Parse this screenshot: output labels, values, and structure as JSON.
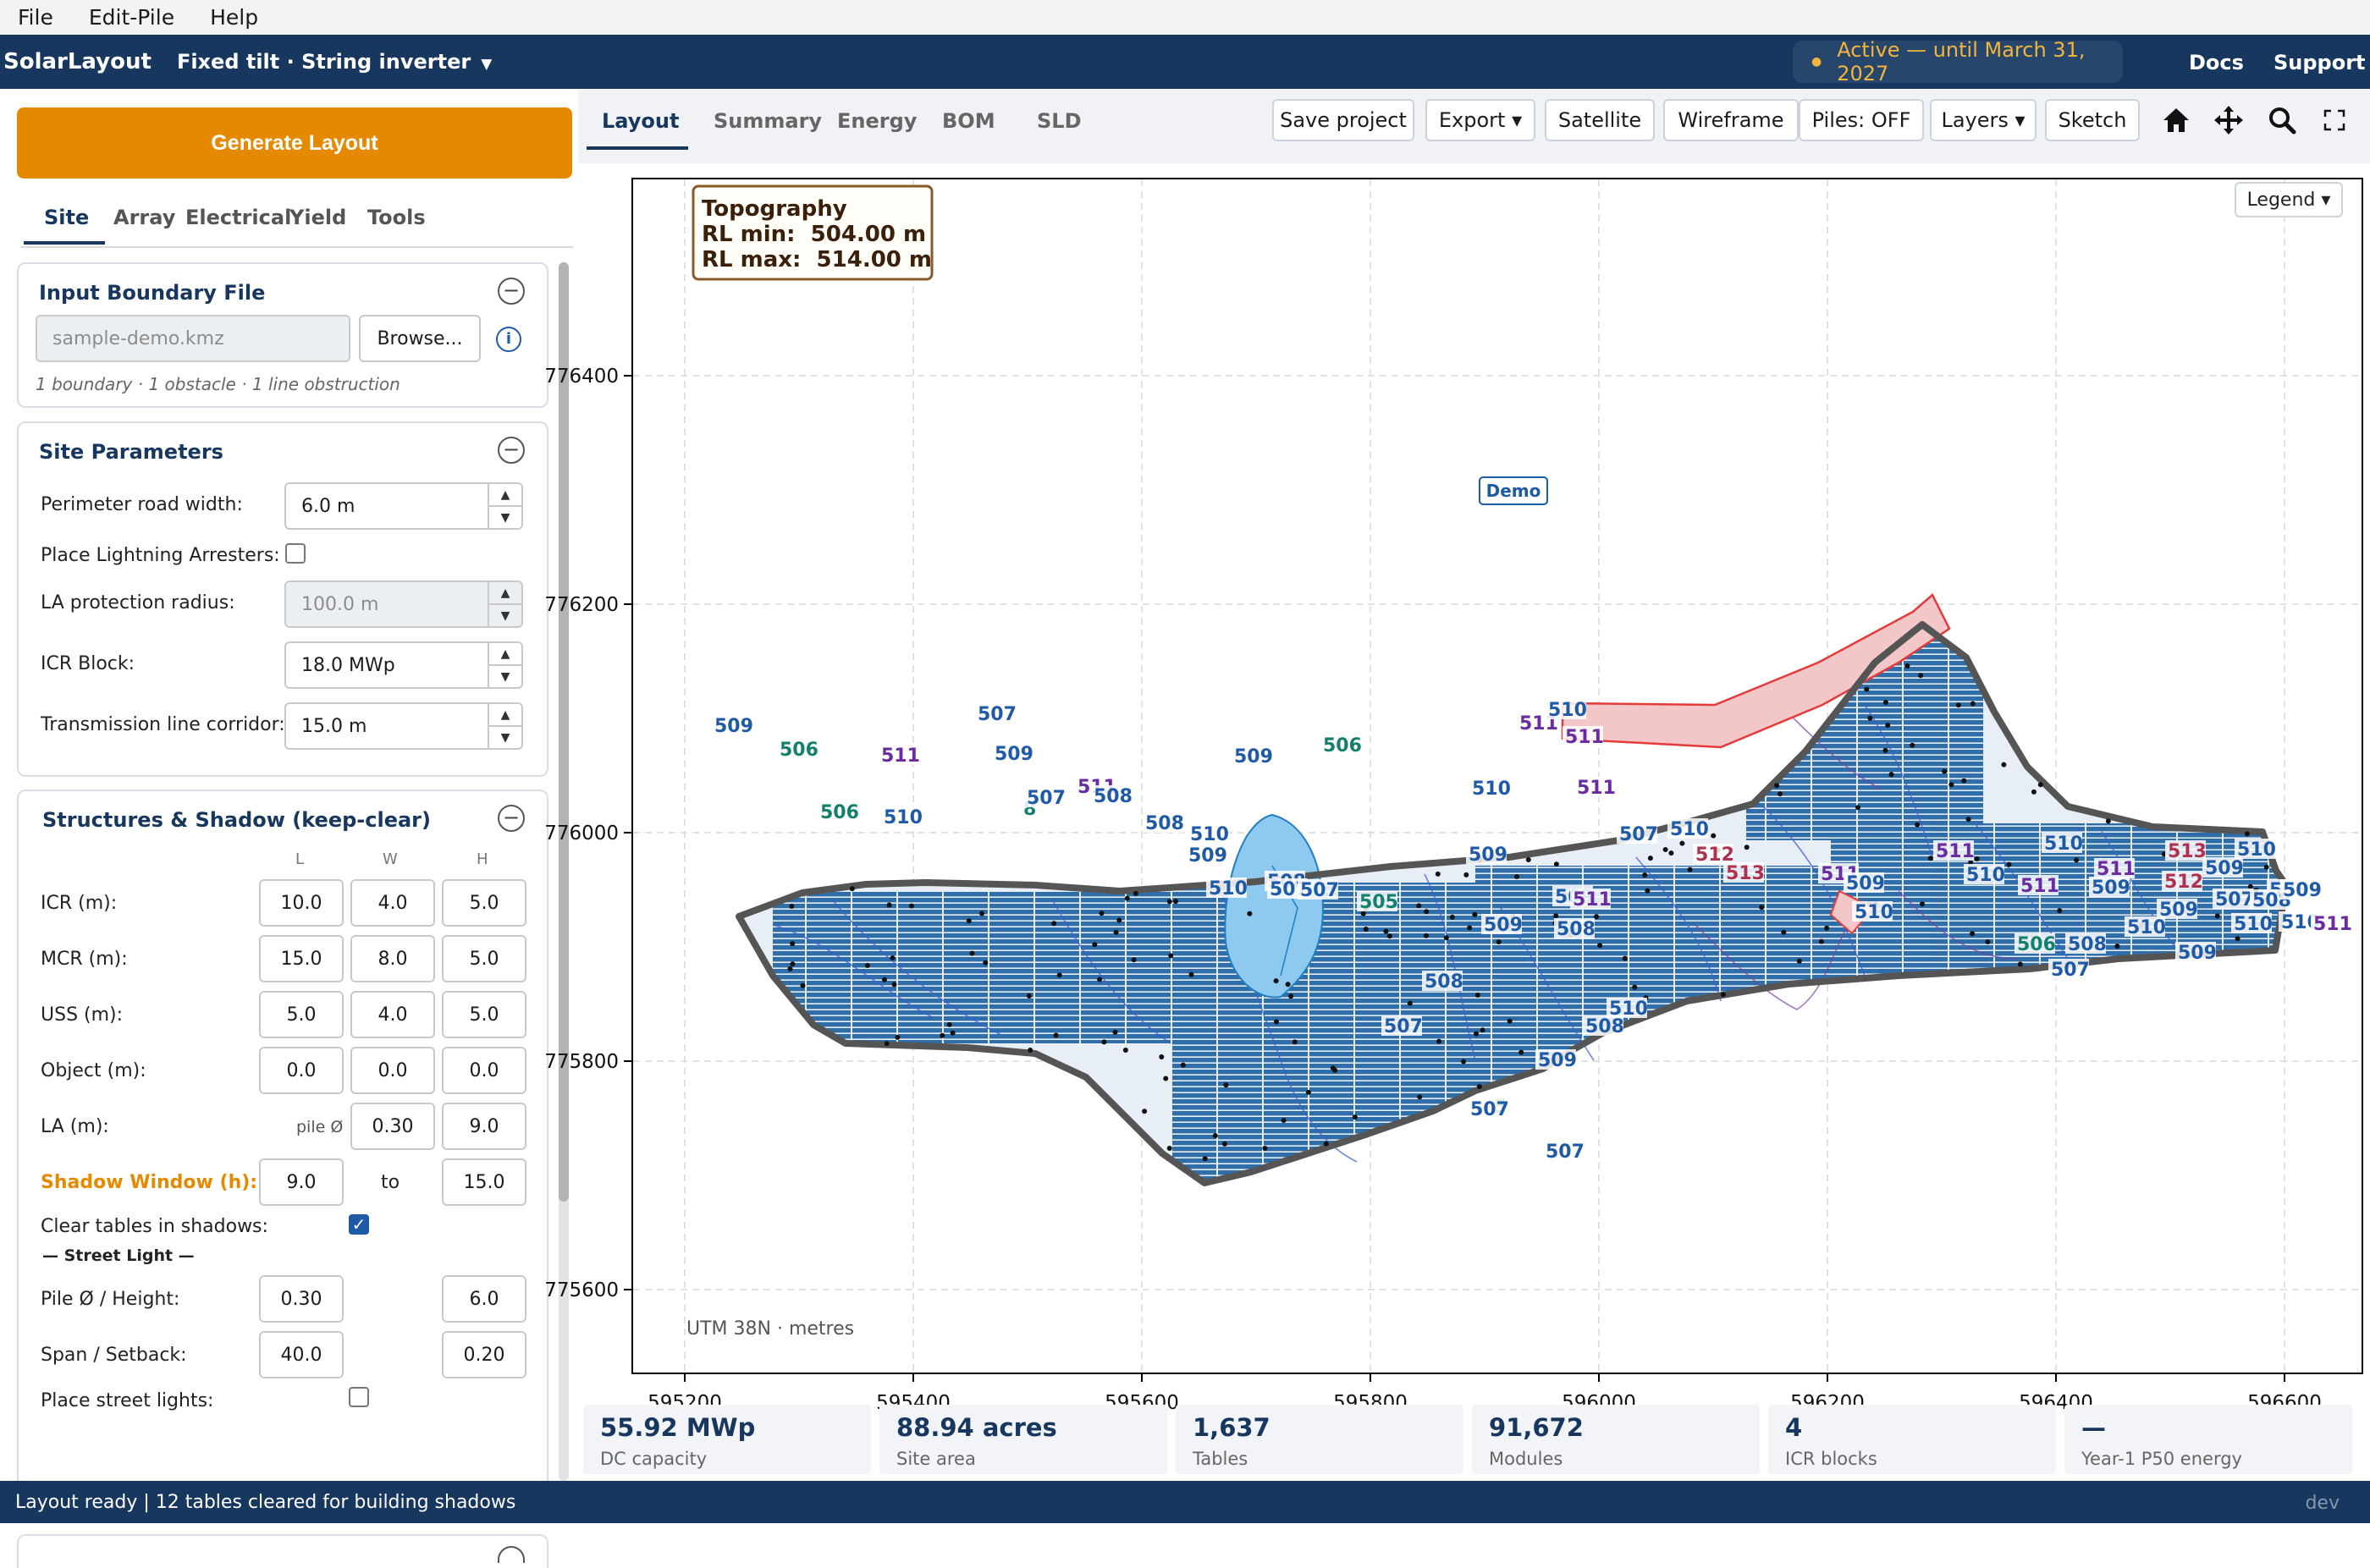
{
  "menu": [
    "File",
    "Edit-Pile",
    "Help"
  ],
  "header": {
    "brand": "SolarLayout",
    "mode": "Fixed tilt · String inverter",
    "license": "Active — until March 31, 2027",
    "links": [
      "Docs",
      "Support"
    ]
  },
  "sidebar": {
    "generate": "Generate Layout",
    "tabs": [
      "Site",
      "Array",
      "Electrical",
      "Yield",
      "Tools"
    ],
    "boundary": {
      "title": "Input Boundary File",
      "file": "sample-demo.kmz",
      "browse": "Browse...",
      "summary": "1 boundary · 1 obstacle · 1 line obstruction"
    },
    "site": {
      "title": "Site Parameters",
      "road_label": "Perimeter road width:",
      "road_value": "6.0  m",
      "la_label": "Place Lightning Arresters:",
      "la_radius_label": "LA protection radius:",
      "la_radius_value": "100.0  m",
      "icr_label": "ICR Block:",
      "icr_value": "18.0  MWp",
      "tl_label": "Transmission line corridor:",
      "tl_value": "15.0  m"
    },
    "structures": {
      "title": "Structures & Shadow (keep-clear)",
      "cols": [
        "L",
        "W",
        "H"
      ],
      "rows": [
        {
          "label": "ICR (m):",
          "v": [
            "10.0",
            "4.0",
            "5.0"
          ]
        },
        {
          "label": "MCR (m):",
          "v": [
            "15.0",
            "8.0",
            "5.0"
          ]
        },
        {
          "label": "USS (m):",
          "v": [
            "5.0",
            "4.0",
            "5.0"
          ]
        },
        {
          "label": "Object (m):",
          "v": [
            "0.0",
            "0.0",
            "0.0"
          ]
        },
        {
          "label": "LA (m):",
          "pre": "pile Ø",
          "v": [
            "0.30",
            "9.0"
          ]
        }
      ],
      "shadow_label": "Shadow Window (h):",
      "shadow_from": "9.0",
      "shadow_to_label": "to",
      "shadow_to": "15.0",
      "clear_label": "Clear tables in shadows:",
      "street_heading": "— Street Light —",
      "pile_label": "Pile Ø / Height:",
      "pile_d": "0.30",
      "pile_h": "6.0",
      "span_label": "Span / Setback:",
      "span": "40.0",
      "setback": "0.20",
      "street_place": "Place street lights:"
    }
  },
  "workspace": {
    "tabs": [
      "Layout",
      "Summary",
      "Energy",
      "BOM",
      "SLD"
    ],
    "toolbar": [
      "Save project",
      "Export ▾",
      "Satellite",
      "Wireframe",
      "Piles: OFF",
      "Layers ▾",
      "Sketch"
    ],
    "legend_btn": "Legend ▾",
    "topo": {
      "title": "Topography",
      "min": "RL min:  504.00 m",
      "max": "RL max:  514.00 m"
    },
    "demo_label": "Demo",
    "crs_note": "UTM 38N · metres",
    "x_ticks": [
      "595200",
      "595400",
      "595600",
      "595800",
      "596000",
      "596200",
      "596400",
      "596600"
    ],
    "y_ticks": [
      "776400",
      "776200",
      "776000",
      "775800",
      "775600"
    ],
    "contour_labels": [
      "509",
      "506",
      "506",
      "511",
      "510",
      "507",
      "509",
      "8",
      "507",
      "511",
      "508",
      "508",
      "509",
      "510",
      "510",
      "509",
      "508",
      "507",
      "507",
      "506",
      "505",
      "507",
      "508",
      "509",
      "510",
      "509",
      "511",
      "510",
      "511",
      "511",
      "507",
      "510",
      "508",
      "509",
      "507",
      "5",
      "507",
      "508",
      "509",
      "511",
      "510",
      "512",
      "513",
      "511",
      "509",
      "510",
      "511",
      "510",
      "511",
      "510",
      "509",
      "511",
      "512",
      "513",
      "509",
      "508",
      "507",
      "510",
      "508",
      "509",
      "509",
      "510",
      "510",
      "511",
      "510",
      "509",
      "508",
      "507",
      "506"
    ]
  },
  "stats": [
    {
      "value": "55.92 MWp",
      "label": "DC capacity"
    },
    {
      "value": "88.94 acres",
      "label": "Site area"
    },
    {
      "value": "1,637",
      "label": "Tables"
    },
    {
      "value": "91,672",
      "label": "Modules"
    },
    {
      "value": "4",
      "label": "ICR blocks"
    },
    {
      "value": "—",
      "label": "Year-1 P50 energy"
    }
  ],
  "status": {
    "text": "Layout ready | 12 tables cleared for building shadows",
    "env": "dev"
  },
  "colors": {
    "navy": "#17375e",
    "accent": "#e58a00",
    "panel": "#2f6ea8",
    "obstruction": "#e53a3a"
  }
}
